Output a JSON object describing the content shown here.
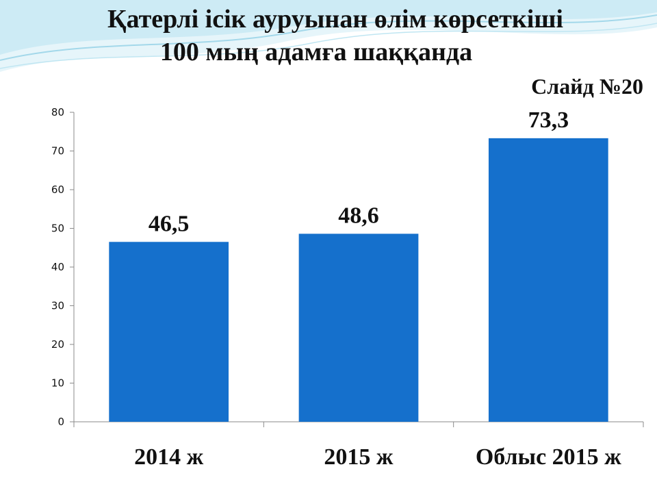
{
  "slide": {
    "title_line1": "Қатерлі ісік ауруынан өлім көрсеткіші",
    "title_line2": "100 мың адамға шаққанда",
    "slide_number": "Слайд №20"
  },
  "colors": {
    "bar": "#1570cc",
    "axis": "#8a8a8a",
    "text": "#111111",
    "wave_light": "#d8f0f7",
    "wave_mid": "#a9dcec"
  },
  "chart_data": {
    "type": "bar",
    "categories": [
      "2014 ж",
      "2015 ж",
      "Облыс 2015 ж"
    ],
    "values": [
      46.5,
      48.6,
      73.3
    ],
    "data_labels": [
      "46,5",
      "48,6",
      "73,3"
    ],
    "ylim": [
      0,
      80
    ],
    "yticks": [
      0,
      10,
      20,
      30,
      40,
      50,
      60,
      70,
      80
    ],
    "xlabel": "",
    "ylabel": "",
    "grid": false,
    "legend": "none"
  }
}
